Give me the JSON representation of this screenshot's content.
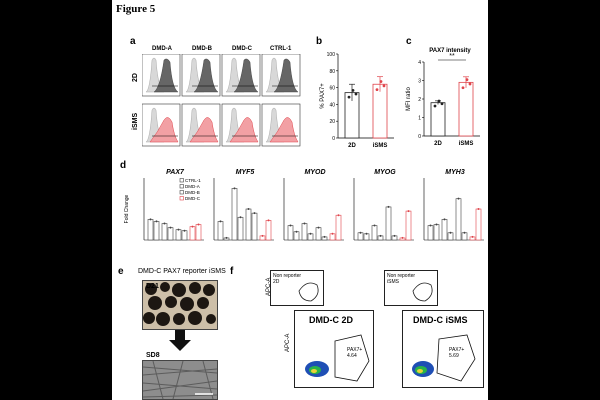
{
  "figure_title": "Figure 5",
  "panel_labels": [
    "a",
    "b",
    "c",
    "d",
    "e",
    "f"
  ],
  "panel_a": {
    "columns": [
      "DMD-A",
      "DMD-B",
      "DMD-C",
      "CTRL-1"
    ],
    "rows": [
      "2D",
      "iSMS"
    ]
  },
  "panel_b": {
    "ylabel": "% PAX7+"
  },
  "panel_c": {
    "title": "PAX7 intensity",
    "ylabel": "MFI ratio",
    "significance": "**"
  },
  "panel_d": {
    "ylabel": "Fold Change",
    "genes": [
      "PAX7",
      "MYF5",
      "MYOD",
      "MYOG",
      "MYH3"
    ],
    "legend": [
      "CTRL-1",
      "DMD-A",
      "DMD-B",
      "DMD-C"
    ]
  },
  "panel_e": {
    "title": "DMD-C PAX7 reporter iSMS",
    "day1": "D21",
    "day2": "SD8"
  },
  "panel_f": {
    "small_labels": [
      "Non reporter\n2D",
      "Non reporter\niSMS"
    ],
    "big_titles": [
      "DMD-C 2D",
      "DMD-C iSMS"
    ],
    "gate_label": "PAX7+",
    "gate_values": [
      "4.64",
      "5.69"
    ],
    "ylabel": "APC-A"
  },
  "colors": {
    "red": "#e0434a",
    "gray": "#9a9a9a",
    "dark": "#444444"
  },
  "chart_data": [
    {
      "type": "bar",
      "panel": "b",
      "categories": [
        "2D",
        "iSMS"
      ],
      "values": [
        54,
        64
      ],
      "errors": [
        10,
        9
      ],
      "ylim": [
        0,
        100
      ],
      "yticks": [
        0,
        20,
        40,
        60,
        80,
        100
      ],
      "ylabel": "% PAX7+"
    },
    {
      "type": "bar",
      "panel": "c",
      "title": "PAX7 intensity",
      "categories": [
        "2D",
        "iSMS"
      ],
      "values": [
        1.8,
        2.9
      ],
      "errors": [
        0.1,
        0.3
      ],
      "ylim": [
        0,
        4
      ],
      "yticks": [
        0,
        1,
        2,
        3,
        4
      ],
      "ylabel": "MFI ratio"
    },
    {
      "type": "bar",
      "panel": "d",
      "genes": [
        "PAX7",
        "MYF5",
        "MYOD",
        "MYOG",
        "MYH3"
      ],
      "series": [
        {
          "name": "CTRL-1",
          "pattern": "gray",
          "values": [
            [
              1.0,
              0.9
            ],
            [
              0.9,
              0.1
            ],
            [
              0.7,
              0.4
            ],
            [
              0.35,
              0.3
            ],
            [
              0.7,
              0.75
            ]
          ]
        },
        {
          "name": "DMD-A",
          "pattern": "gray",
          "values": [
            [
              0.8,
              0.6
            ],
            [
              2.5,
              1.1
            ],
            [
              0.8,
              0.3
            ],
            [
              0.7,
              0.2
            ],
            [
              1.0,
              0.35
            ]
          ]
        },
        {
          "name": "DMD-B",
          "pattern": "gray",
          "values": [
            [
              0.5,
              0.45
            ],
            [
              1.5,
              1.3
            ],
            [
              0.6,
              0.15
            ],
            [
              1.6,
              0.2
            ],
            [
              2.0,
              0.35
            ]
          ]
        },
        {
          "name": "DMD-C",
          "pattern": "red",
          "values": [
            [
              0.65,
              0.75
            ],
            [
              0.2,
              0.95
            ],
            [
              0.3,
              1.2
            ],
            [
              0.1,
              1.4
            ],
            [
              0.15,
              1.5
            ]
          ]
        }
      ],
      "pairs": [
        "2D",
        "iSMS"
      ]
    }
  ]
}
